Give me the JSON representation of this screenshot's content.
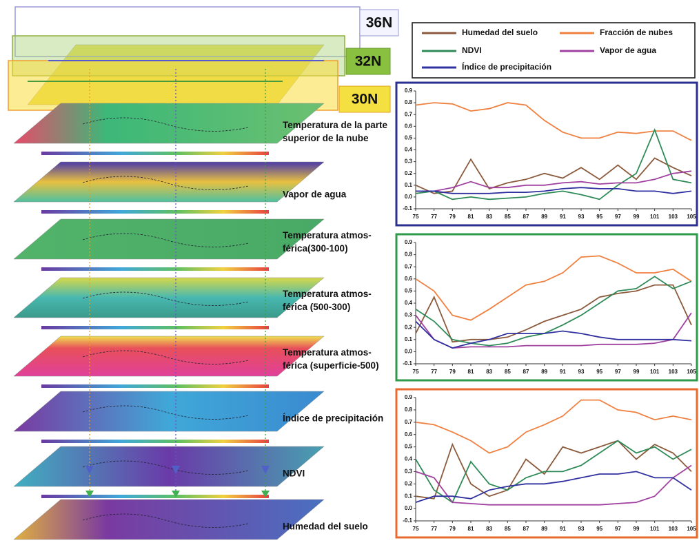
{
  "latitudes": [
    "36N",
    "32N",
    "30N"
  ],
  "layers": [
    [
      "Temperatura de la parte",
      "superior de la nube"
    ],
    [
      "Vapor de agua"
    ],
    [
      "Temperatura atmos-",
      "férica(300-100)"
    ],
    [
      "Temperatura atmos-",
      "férica (500-300)"
    ],
    [
      "Temperatura atmos-",
      "férica (superficie-500)"
    ],
    [
      "Índice de precipitación"
    ],
    [
      "NDVI"
    ],
    [
      "Humedad del suelo"
    ]
  ],
  "chart_data": [
    {
      "type": "line",
      "frame_color": "#2b2f8f",
      "x": [
        75,
        77,
        79,
        81,
        83,
        85,
        87,
        89,
        91,
        93,
        95,
        97,
        99,
        101,
        103,
        105
      ],
      "xlim": [
        75,
        105
      ],
      "xticks": [
        75,
        77,
        79,
        81,
        83,
        85,
        87,
        89,
        91,
        93,
        95,
        97,
        99,
        101,
        103,
        105
      ],
      "ylim": [
        -0.1,
        0.9
      ],
      "yticks": [
        -0.1,
        {
          "value": 0,
          "label": "0.0"
        },
        0.1,
        0.2,
        0.3,
        0.4,
        0.5,
        0.6,
        0.7,
        0.8,
        0.9
      ],
      "series": [
        {
          "name": "Humedad del suelo",
          "color": "#8b5a3c",
          "values": [
            0.1,
            0.03,
            0.05,
            0.32,
            0.07,
            0.12,
            0.15,
            0.2,
            0.16,
            0.25,
            0.15,
            0.27,
            0.15,
            0.33,
            0.25,
            0.18
          ]
        },
        {
          "name": "Fracción de nubes",
          "color": "#f08040",
          "values": [
            0.78,
            0.8,
            0.79,
            0.73,
            0.75,
            0.8,
            0.78,
            0.65,
            0.55,
            0.5,
            0.5,
            0.55,
            0.54,
            0.56,
            0.56,
            0.48
          ]
        },
        {
          "name": "NDVI",
          "color": "#2e8b57",
          "values": [
            0.03,
            0.05,
            -0.02,
            0,
            -0.02,
            -0.01,
            0,
            0.03,
            0.05,
            0.02,
            -0.02,
            0.1,
            0.2,
            0.57,
            0.15,
            0.12
          ]
        },
        {
          "name": "Vapor de agua",
          "color": "#a040a0",
          "values": [
            0.05,
            0.05,
            0.08,
            0.13,
            0.08,
            0.08,
            0.1,
            0.1,
            0.12,
            0.13,
            0.11,
            0.12,
            0.12,
            0.15,
            0.2,
            0.22
          ]
        },
        {
          "name": "Índice de precipitación",
          "color": "#3030a0",
          "values": [
            0.05,
            0.05,
            0.03,
            0.03,
            0.03,
            0.04,
            0.04,
            0.05,
            0.07,
            0.08,
            0.07,
            0.07,
            0.05,
            0.05,
            0.03,
            0.05
          ]
        }
      ]
    },
    {
      "type": "line",
      "frame_color": "#2e9a4a",
      "x": [
        75,
        77,
        79,
        81,
        83,
        85,
        87,
        89,
        91,
        93,
        95,
        97,
        99,
        101,
        103,
        105
      ],
      "xlim": [
        75,
        105
      ],
      "xticks": [
        75,
        77,
        79,
        81,
        83,
        85,
        87,
        89,
        91,
        93,
        95,
        97,
        99,
        101,
        103,
        105
      ],
      "ylim": [
        -0.1,
        0.9
      ],
      "yticks": [
        -0.1,
        {
          "value": 0,
          "label": "0.0"
        },
        0.1,
        0.2,
        0.3,
        0.4,
        0.5,
        0.6,
        0.7,
        0.8,
        0.9
      ],
      "series": [
        {
          "color": "#8b5a3c",
          "values": [
            0.15,
            0.45,
            0.08,
            0.1,
            0.1,
            0.12,
            0.18,
            0.25,
            0.3,
            0.35,
            0.45,
            0.48,
            0.5,
            0.55,
            0.55,
            0.22
          ]
        },
        {
          "color": "#f08040",
          "values": [
            0.6,
            0.5,
            0.3,
            0.26,
            0.35,
            0.45,
            0.55,
            0.58,
            0.65,
            0.78,
            0.79,
            0.73,
            0.65,
            0.65,
            0.68,
            0.58
          ]
        },
        {
          "color": "#2e8b57",
          "values": [
            0.35,
            0.25,
            0.1,
            0.07,
            0.05,
            0.07,
            0.12,
            0.15,
            0.22,
            0.3,
            0.4,
            0.5,
            0.52,
            0.62,
            0.52,
            0.58
          ]
        },
        {
          "color": "#a040a0",
          "values": [
            0.3,
            0.1,
            0.03,
            0.04,
            0.04,
            0.04,
            0.05,
            0.05,
            0.05,
            0.05,
            0.06,
            0.06,
            0.06,
            0.07,
            0.1,
            0.32
          ]
        },
        {
          "color": "#3030a0",
          "values": [
            0.25,
            0.1,
            0.03,
            0.07,
            0.1,
            0.15,
            0.15,
            0.15,
            0.17,
            0.15,
            0.12,
            0.1,
            0.1,
            0.1,
            0.1,
            0.09
          ]
        }
      ]
    },
    {
      "type": "line",
      "frame_color": "#e8682e",
      "x": [
        75,
        77,
        79,
        81,
        83,
        85,
        87,
        89,
        91,
        93,
        95,
        97,
        99,
        101,
        103,
        105
      ],
      "xlim": [
        75,
        105
      ],
      "xticks": [
        75,
        77,
        79,
        81,
        83,
        85,
        87,
        89,
        91,
        93,
        95,
        97,
        99,
        101,
        103,
        105
      ],
      "ylim": [
        -0.1,
        0.9
      ],
      "yticks": [
        -0.1,
        {
          "value": 0,
          "label": "0.0"
        },
        0.1,
        0.2,
        0.3,
        0.4,
        0.5,
        0.6,
        0.7,
        0.8,
        0.9
      ],
      "series": [
        {
          "color": "#8b5a3c",
          "values": [
            0.1,
            0.08,
            0.52,
            0.2,
            0.1,
            0.15,
            0.4,
            0.28,
            0.5,
            0.45,
            0.5,
            0.55,
            0.4,
            0.52,
            0.45,
            0.3
          ]
        },
        {
          "color": "#f08040",
          "values": [
            0.7,
            0.68,
            0.62,
            0.55,
            0.45,
            0.5,
            0.62,
            0.68,
            0.75,
            0.88,
            0.88,
            0.8,
            0.78,
            0.72,
            0.75,
            0.72
          ]
        },
        {
          "color": "#2e8b57",
          "values": [
            0.4,
            0.15,
            0.05,
            0.38,
            0.2,
            0.15,
            0.25,
            0.3,
            0.3,
            0.35,
            0.45,
            0.55,
            0.45,
            0.5,
            0.4,
            0.48
          ]
        },
        {
          "color": "#a040a0",
          "values": [
            0.3,
            0.25,
            0.05,
            0.04,
            0.03,
            0.03,
            0.03,
            0.03,
            0.03,
            0.03,
            0.03,
            0.04,
            0.05,
            0.1,
            0.25,
            0.35
          ]
        },
        {
          "color": "#3030a0",
          "values": [
            0.05,
            0.1,
            0.1,
            0.08,
            0.15,
            0.18,
            0.2,
            0.2,
            0.22,
            0.25,
            0.28,
            0.28,
            0.3,
            0.25,
            0.25,
            0.15
          ]
        }
      ]
    }
  ]
}
